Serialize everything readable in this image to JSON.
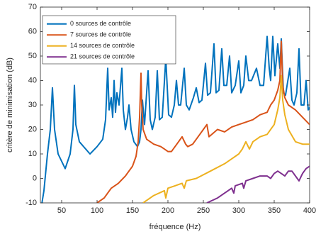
{
  "chart_data": {
    "type": "line",
    "xlabel": "fréquence (Hz)",
    "ylabel": "critère de minimisation (dB)",
    "xlim": [
      20,
      400
    ],
    "ylim": [
      -10,
      70
    ],
    "xticks": [
      50,
      100,
      150,
      200,
      250,
      300,
      350,
      400
    ],
    "yticks": [
      -10,
      0,
      10,
      20,
      30,
      40,
      50,
      60,
      70
    ],
    "legend": "upper-left",
    "series": [
      {
        "name": "0 sources de contrôle",
        "color": "#0072BD",
        "x": [
          20,
          25,
          30,
          34,
          37,
          40,
          45,
          55,
          62,
          66,
          68,
          70,
          75,
          90,
          100,
          108,
          112,
          115,
          117,
          120,
          122,
          124,
          126,
          128,
          131,
          135,
          137,
          140,
          143,
          145,
          148,
          152,
          157,
          160,
          162,
          164,
          167,
          172,
          175,
          178,
          182,
          185,
          188,
          192,
          197,
          201,
          205,
          209,
          212,
          215,
          218,
          223,
          226,
          230,
          236,
          240,
          244,
          248,
          253,
          256,
          260,
          265,
          268,
          272,
          276,
          279,
          283,
          287,
          290,
          295,
          300,
          303,
          307,
          310,
          314,
          318,
          325,
          330,
          335,
          340,
          343,
          345,
          348,
          351,
          355,
          358,
          360,
          363,
          366,
          372,
          375,
          378,
          382,
          385,
          388,
          392,
          395,
          398,
          400
        ],
        "values": [
          -14,
          -5,
          10,
          20,
          37,
          20,
          10,
          4,
          10,
          20,
          38,
          22,
          15,
          10,
          13,
          16,
          24,
          45,
          28,
          33,
          25,
          40,
          27,
          35,
          30,
          45,
          28,
          20,
          25,
          30,
          20,
          15,
          13,
          15,
          20,
          32,
          22,
          44,
          24,
          20,
          25,
          44,
          24,
          25,
          49,
          26,
          25,
          30,
          40,
          30,
          30,
          45,
          30,
          28,
          33,
          37,
          31,
          32,
          47,
          34,
          35,
          55,
          35,
          36,
          53,
          38,
          38,
          50,
          35,
          38,
          48,
          35,
          38,
          50,
          40,
          40,
          45,
          38,
          38,
          58,
          45,
          40,
          58,
          42,
          55,
          45,
          57,
          35,
          34,
          45,
          32,
          30,
          35,
          53,
          30,
          30,
          40,
          28,
          29
        ]
      },
      {
        "name": "7 sources de contrôle",
        "color": "#D95319",
        "x": [
          100,
          110,
          120,
          130,
          140,
          150,
          155,
          158,
          160,
          162,
          163,
          165,
          170,
          180,
          190,
          195,
          200,
          205,
          210,
          215,
          220,
          225,
          228,
          235,
          240,
          245,
          250,
          255,
          258,
          262,
          270,
          280,
          290,
          300,
          310,
          320,
          330,
          340,
          345,
          350,
          355,
          358,
          360,
          362,
          365,
          370,
          380,
          390,
          400
        ],
        "values": [
          -10,
          -8,
          -4,
          -2,
          1,
          5,
          9,
          15,
          25,
          43,
          30,
          20,
          16,
          14,
          13,
          12,
          11,
          11,
          13,
          15,
          17,
          14,
          13,
          14,
          16,
          18,
          20,
          22,
          17,
          18,
          20,
          19,
          21,
          22,
          23,
          24,
          26,
          27,
          30,
          32,
          36,
          40,
          56,
          38,
          33,
          30,
          28,
          25,
          22
        ]
      },
      {
        "name": "14 sources de contrôle",
        "color": "#EDB120",
        "x": [
          165,
          180,
          195,
          197,
          200,
          210,
          220,
          223,
          226,
          240,
          260,
          280,
          290,
          300,
          305,
          310,
          315,
          320,
          330,
          340,
          350,
          355,
          358,
          360,
          362,
          365,
          370,
          380,
          390,
          400
        ],
        "values": [
          -10,
          -7,
          -5,
          -8,
          -4,
          -3,
          -2,
          -4,
          -1,
          0,
          3,
          6,
          8,
          10,
          12,
          15,
          12,
          15,
          17,
          18,
          22,
          28,
          33,
          42,
          32,
          26,
          20,
          15,
          14,
          14
        ]
      },
      {
        "name": "21 sources de contrôle",
        "color": "#7E2F8E",
        "x": [
          255,
          270,
          280,
          290,
          293,
          295,
          305,
          307,
          310,
          320,
          330,
          340,
          345,
          350,
          355,
          360,
          365,
          370,
          375,
          380,
          385,
          390,
          395,
          400
        ],
        "values": [
          -10,
          -8,
          -6,
          -4,
          -6,
          -3,
          -2,
          -4,
          -1,
          0,
          1,
          1,
          0,
          2,
          3,
          2,
          1,
          3,
          3,
          1,
          -1,
          2,
          4,
          5
        ]
      }
    ]
  }
}
